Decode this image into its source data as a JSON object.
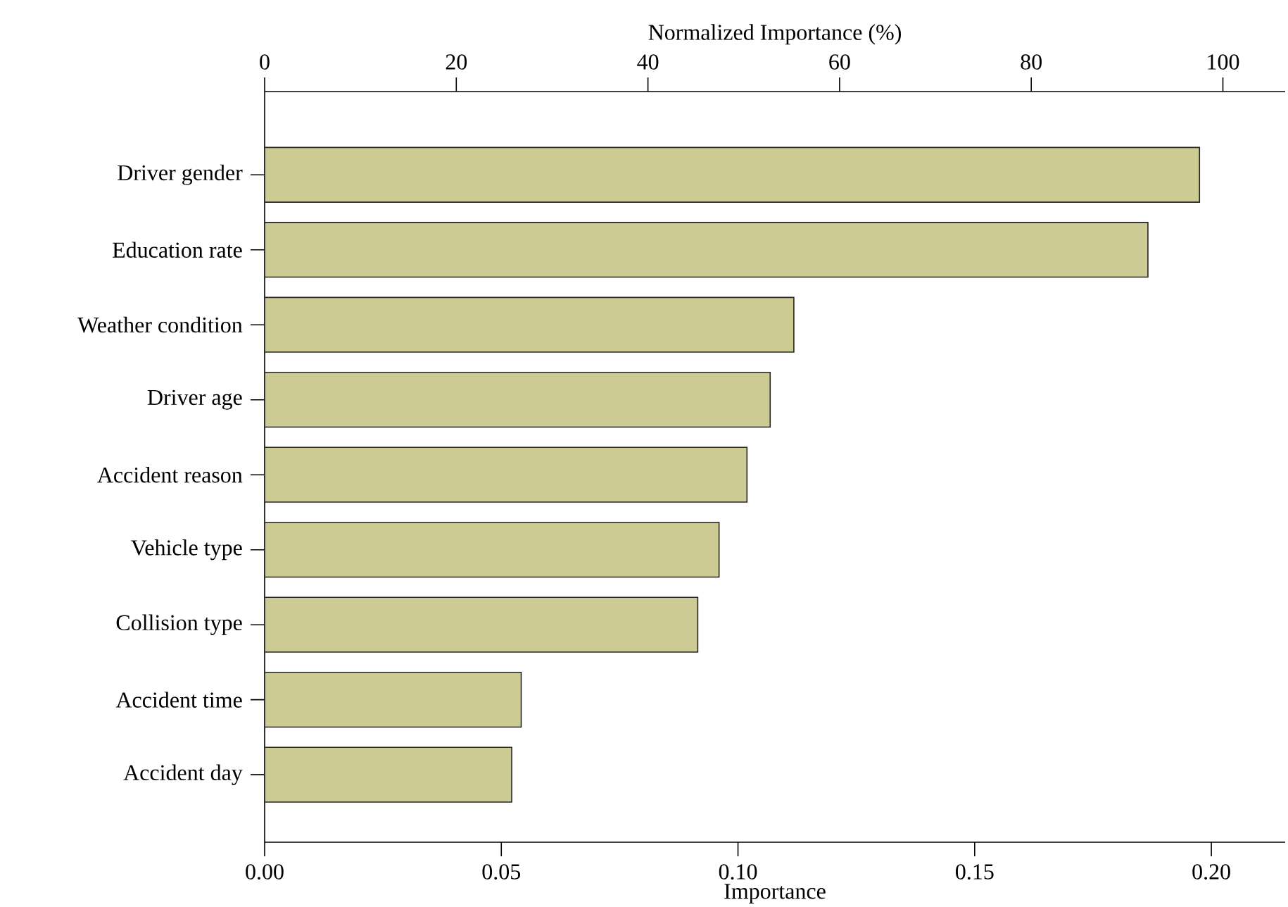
{
  "chart_data": {
    "type": "bar",
    "orientation": "horizontal",
    "categories": [
      "Driver gender",
      "Education rate",
      "Weather condition",
      "Driver age",
      "Accident reason",
      "Vehicle type",
      "Collision type",
      "Accident time",
      "Accident day"
    ],
    "values": [
      0.1975,
      0.1866,
      0.1118,
      0.1068,
      0.1019,
      0.096,
      0.0915,
      0.0542,
      0.0522
    ],
    "color": "#cccb94",
    "xlabel": "Importance",
    "xlim": [
      0,
      0.2156
    ],
    "xticks": [
      {
        "value": 0,
        "label": "0.00"
      },
      {
        "value": 0.05,
        "label": "0.05"
      },
      {
        "value": 0.1,
        "label": "0.10"
      },
      {
        "value": 0.15,
        "label": "0.15"
      },
      {
        "value": 0.2,
        "label": "0.20"
      }
    ],
    "x2label": "Normalized Importance (%)",
    "x2lim": [
      0,
      106.5
    ],
    "x2ticks": [
      0,
      20,
      40,
      60,
      80,
      100
    ],
    "grid": false
  }
}
